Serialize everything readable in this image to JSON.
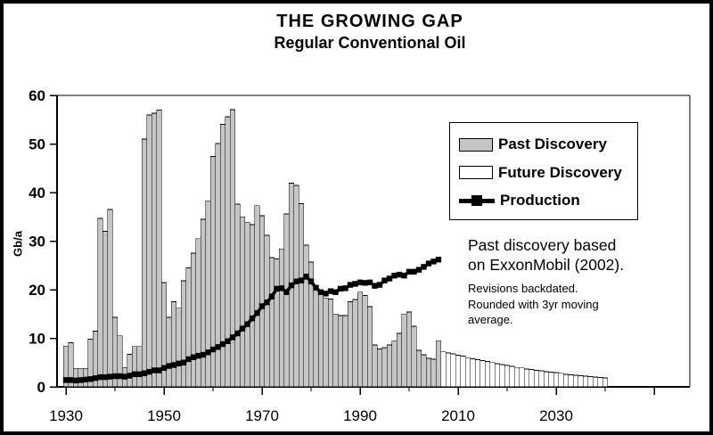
{
  "header": {
    "title": "THE GROWING GAP",
    "subtitle": "Regular Conventional Oil"
  },
  "legend": {
    "items": [
      {
        "label": "Past Discovery",
        "swatch": "gray-filled-bar"
      },
      {
        "label": "Future Discovery",
        "swatch": "white-bar"
      },
      {
        "label": "Production",
        "swatch": "black-line-square-marker"
      }
    ]
  },
  "annotation": {
    "lines": [
      "Past discovery based",
      "on ExxonMobil (2002)."
    ],
    "note_lines": [
      "Revisions backdated.",
      "Rounded with 3yr moving",
      "average."
    ]
  },
  "chart_data": {
    "type": "bar",
    "title": "THE GROWING GAP",
    "subtitle": "Regular Conventional Oil",
    "xlabel": "",
    "ylabel": "Gb/a",
    "ylim": [
      0,
      60
    ],
    "yticks": [
      0,
      10,
      20,
      30,
      40,
      50,
      60
    ],
    "xlim": [
      1928,
      2058
    ],
    "xticks_labeled": [
      1930,
      1950,
      1970,
      1990,
      2010,
      2030
    ],
    "xticks_major_unlabeled": [
      2050
    ],
    "xticks_minor": [
      1940,
      1960,
      1980,
      2000,
      2020,
      2040
    ],
    "grid": false,
    "legend_position": "upper right",
    "colors": {
      "past_fill": "#c5c5c5",
      "future_fill": "#ffffff",
      "bar_border": "#000000",
      "production_line": "#000000",
      "frame": "#000000",
      "background": "#ffffff"
    },
    "bar_series": [
      {
        "name": "Past Discovery",
        "start_year": 1930,
        "values": [
          8.4,
          9.1,
          3.8,
          3.8,
          3.8,
          9.8,
          11.5,
          34.7,
          32.0,
          36.5,
          14.3,
          10.5,
          4.0,
          6.7,
          8.3,
          8.3,
          51.0,
          56.0,
          56.3,
          57.0,
          21.5,
          14.3,
          17.5,
          16.2,
          21.8,
          24.5,
          27.5,
          30.5,
          34.5,
          38.3,
          47.4,
          50.1,
          54.0,
          55.6,
          57.1,
          37.6,
          35.0,
          33.9,
          33.4,
          37.3,
          35.2,
          31.2,
          26.6,
          26.3,
          28.4,
          35.6,
          41.9,
          41.5,
          37.7,
          29.2,
          25.7,
          20.5,
          19.6,
          18.3,
          18.1,
          15.0,
          14.7,
          14.7,
          17.5,
          18.0,
          19.5,
          18.8,
          16.5,
          8.6,
          7.8,
          8.1,
          8.6,
          9.5,
          11.0,
          15.0,
          15.4,
          12.5,
          7.5,
          6.6,
          5.9,
          5.7,
          9.5
        ]
      },
      {
        "name": "Future Discovery",
        "start_year": 2007,
        "values": [
          7.2,
          7.0,
          6.8,
          6.5,
          6.3,
          6.0,
          5.8,
          5.6,
          5.4,
          5.2,
          5.0,
          4.8,
          4.6,
          4.4,
          4.2,
          4.0,
          3.9,
          3.7,
          3.6,
          3.4,
          3.3,
          3.1,
          3.0,
          2.9,
          2.8,
          2.6,
          2.5,
          2.4,
          2.3,
          2.2,
          2.1,
          2.0,
          1.9,
          1.8
        ]
      }
    ],
    "line_series": [
      {
        "name": "Production",
        "marker": "square",
        "start_year": 1930,
        "values": [
          1.4,
          1.4,
          1.3,
          1.4,
          1.5,
          1.6,
          1.8,
          2.0,
          2.0,
          2.1,
          2.2,
          2.2,
          2.1,
          2.3,
          2.6,
          2.6,
          2.8,
          3.1,
          3.4,
          3.4,
          3.9,
          4.3,
          4.5,
          4.8,
          5.0,
          5.7,
          6.1,
          6.4,
          6.6,
          7.1,
          7.7,
          8.2,
          8.8,
          9.4,
          10.2,
          11.0,
          12.0,
          12.9,
          14.1,
          15.2,
          16.6,
          17.4,
          18.6,
          20.2,
          20.3,
          19.5,
          20.9,
          21.7,
          21.9,
          22.7,
          21.7,
          20.4,
          19.5,
          19.2,
          19.7,
          19.5,
          20.2,
          20.3,
          21.0,
          21.2,
          21.5,
          21.4,
          21.5,
          20.8,
          21.0,
          21.9,
          22.3,
          22.9,
          23.1,
          22.9,
          23.7,
          23.7,
          24.1,
          24.7,
          25.4,
          25.8,
          26.2
        ]
      }
    ]
  }
}
